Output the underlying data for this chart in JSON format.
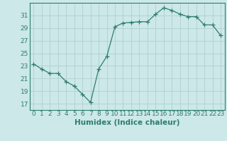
{
  "x": [
    0,
    1,
    2,
    3,
    4,
    5,
    6,
    7,
    8,
    9,
    10,
    11,
    12,
    13,
    14,
    15,
    16,
    17,
    18,
    19,
    20,
    21,
    22,
    23
  ],
  "y": [
    23.3,
    22.5,
    21.8,
    21.8,
    20.5,
    19.8,
    18.5,
    17.2,
    22.5,
    24.5,
    29.2,
    29.8,
    29.9,
    30.0,
    30.0,
    31.2,
    32.2,
    31.8,
    31.2,
    30.8,
    30.8,
    29.5,
    29.5,
    27.8
  ],
  "line_color": "#2d7d6e",
  "marker": "+",
  "marker_size": 4,
  "background_color": "#cce8e8",
  "grid_color": "#b0d0d0",
  "xlabel": "Humidex (Indice chaleur)",
  "ylim": [
    16,
    33
  ],
  "xlim": [
    -0.5,
    23.5
  ],
  "yticks": [
    17,
    19,
    21,
    23,
    25,
    27,
    29,
    31
  ],
  "xtick_labels": [
    "0",
    "1",
    "2",
    "3",
    "4",
    "5",
    "6",
    "7",
    "8",
    "9",
    "10",
    "11",
    "12",
    "13",
    "14",
    "15",
    "16",
    "17",
    "18",
    "19",
    "20",
    "21",
    "22",
    "23"
  ],
  "tick_color": "#2d7d6e",
  "label_fontsize": 7.5,
  "tick_fontsize": 6.5
}
